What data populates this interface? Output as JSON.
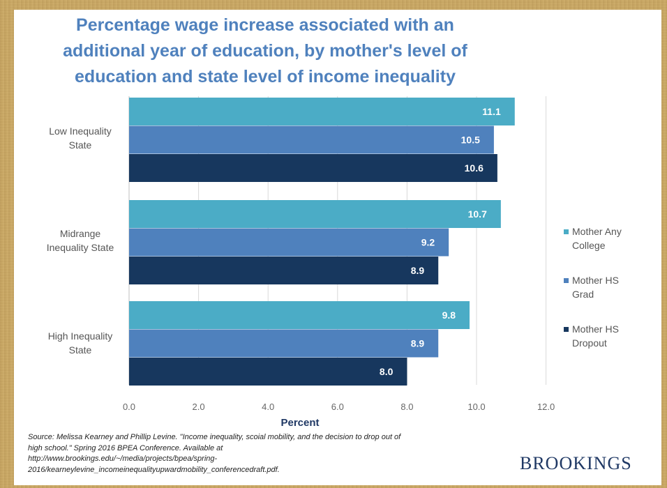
{
  "chart_data": {
    "type": "bar",
    "orientation": "horizontal",
    "title_lines": [
      "Percentage wage increase associated with an",
      "additional year of education, by mother's level of",
      "education and state level of income inequality"
    ],
    "categories": [
      [
        "Low Inequality",
        "State"
      ],
      [
        "Midrange",
        "Inequality State"
      ],
      [
        "High Inequality",
        "State"
      ]
    ],
    "series": [
      {
        "name_lines": [
          "Mother Any",
          "College"
        ],
        "color": "#4bacc6",
        "values": [
          11.1,
          10.7,
          9.8
        ]
      },
      {
        "name_lines": [
          "Mother HS",
          "Grad"
        ],
        "color": "#4f81bd",
        "values": [
          10.5,
          9.2,
          8.9
        ]
      },
      {
        "name_lines": [
          "Mother HS",
          "Dropout"
        ],
        "color": "#17375e",
        "values": [
          10.6,
          8.9,
          8.0
        ]
      }
    ],
    "data_labels": [
      [
        "11.1",
        "10.7",
        "9.8"
      ],
      [
        "10.5",
        "9.2",
        "8.9"
      ],
      [
        "10.6",
        "8.9",
        "8.0"
      ]
    ],
    "xlabel": "Percent",
    "xlim": [
      0,
      12
    ],
    "xticks": [
      "0.0",
      "2.0",
      "4.0",
      "6.0",
      "8.0",
      "10.0",
      "12.0"
    ],
    "grid": true,
    "legend_position": "right"
  },
  "source_lines": [
    "Source: Melissa Kearney and  Phillip Levine. \"Income inequality, scoial mobility, and the decision to drop out of",
    "high school.\"  Spring 2016 BPEA Conference. Available at",
    "http://www.brookings.edu/~/media/projects/bpea/spring-",
    "2016/kearneylevine_incomeinequalityupwardmobility_conferencedraft.pdf."
  ],
  "brand": "BROOKINGS"
}
